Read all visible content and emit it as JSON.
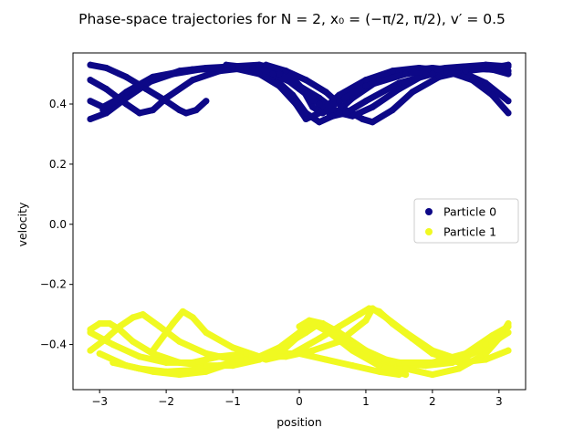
{
  "chart_data": {
    "type": "scatter",
    "title": "Phase-space trajectories for N = 2, x₀ = (−π/2, π/2), v′ = 0.5",
    "xlabel": "position",
    "ylabel": "velocity",
    "xlim": [
      -3.4,
      3.4
    ],
    "ylim": [
      -0.55,
      0.57
    ],
    "xticks": [
      -3,
      -2,
      -1,
      0,
      1,
      2,
      3
    ],
    "xtick_labels": [
      "−3",
      "−2",
      "−1",
      "0",
      "1",
      "2",
      "3"
    ],
    "yticks": [
      -0.4,
      -0.2,
      0.0,
      0.2,
      0.4
    ],
    "ytick_labels": [
      "−0.4",
      "−0.2",
      "0.0",
      "0.2",
      "0.4"
    ],
    "grid": false,
    "legend_position": "center-right",
    "series": [
      {
        "name": "Particle 0",
        "color": "#0d0887",
        "points": [
          [
            -3.14,
            0.53
          ],
          [
            -2.9,
            0.52
          ],
          [
            -2.6,
            0.49
          ],
          [
            -2.3,
            0.45
          ],
          [
            -2.0,
            0.41
          ],
          [
            -1.8,
            0.38
          ],
          [
            -1.7,
            0.37
          ],
          [
            -1.55,
            0.38
          ],
          [
            -1.4,
            0.41
          ],
          [
            -3.14,
            0.48
          ],
          [
            -2.9,
            0.45
          ],
          [
            -2.6,
            0.4
          ],
          [
            -2.4,
            0.37
          ],
          [
            -2.2,
            0.38
          ],
          [
            -2.0,
            0.42
          ],
          [
            -1.6,
            0.48
          ],
          [
            -1.2,
            0.51
          ],
          [
            -0.8,
            0.52
          ],
          [
            -0.4,
            0.49
          ],
          [
            -0.1,
            0.43
          ],
          [
            0.1,
            0.37
          ],
          [
            0.3,
            0.34
          ],
          [
            0.5,
            0.36
          ],
          [
            0.8,
            0.42
          ],
          [
            1.2,
            0.48
          ],
          [
            1.6,
            0.51
          ],
          [
            2.0,
            0.52
          ],
          [
            2.4,
            0.51
          ],
          [
            2.8,
            0.47
          ],
          [
            3.14,
            0.41
          ],
          [
            -3.14,
            0.41
          ],
          [
            -2.95,
            0.39
          ],
          [
            -2.7,
            0.42
          ],
          [
            -2.3,
            0.47
          ],
          [
            -1.9,
            0.5
          ],
          [
            -1.5,
            0.515
          ],
          [
            -1.0,
            0.52
          ],
          [
            -0.6,
            0.5
          ],
          [
            -0.3,
            0.46
          ],
          [
            -0.05,
            0.4
          ],
          [
            0.1,
            0.35
          ],
          [
            0.3,
            0.37
          ],
          [
            0.6,
            0.43
          ],
          [
            1.0,
            0.48
          ],
          [
            1.4,
            0.51
          ],
          [
            1.8,
            0.52
          ],
          [
            2.2,
            0.51
          ],
          [
            2.6,
            0.48
          ],
          [
            2.9,
            0.43
          ],
          [
            3.14,
            0.37
          ],
          [
            -3.14,
            0.35
          ],
          [
            -2.9,
            0.37
          ],
          [
            -2.6,
            0.42
          ],
          [
            -2.2,
            0.48
          ],
          [
            -1.8,
            0.51
          ],
          [
            -1.4,
            0.52
          ],
          [
            -1.0,
            0.525
          ],
          [
            -0.6,
            0.53
          ],
          [
            -0.2,
            0.51
          ],
          [
            0.1,
            0.48
          ],
          [
            0.4,
            0.44
          ],
          [
            0.7,
            0.38
          ],
          [
            0.95,
            0.35
          ],
          [
            1.1,
            0.34
          ],
          [
            1.4,
            0.38
          ],
          [
            1.7,
            0.44
          ],
          [
            2.1,
            0.49
          ],
          [
            2.5,
            0.51
          ],
          [
            2.9,
            0.52
          ],
          [
            3.14,
            0.53
          ],
          [
            -2.95,
            0.38
          ],
          [
            -2.6,
            0.44
          ],
          [
            -2.2,
            0.49
          ],
          [
            -1.6,
            0.515
          ],
          [
            -1.0,
            0.52
          ],
          [
            -0.4,
            0.5
          ],
          [
            0.0,
            0.46
          ],
          [
            0.3,
            0.42
          ],
          [
            0.6,
            0.37
          ],
          [
            0.8,
            0.36
          ],
          [
            1.1,
            0.39
          ],
          [
            1.5,
            0.45
          ],
          [
            1.9,
            0.5
          ],
          [
            2.4,
            0.52
          ],
          [
            2.9,
            0.515
          ],
          [
            3.14,
            0.5
          ],
          [
            -1.1,
            0.53
          ],
          [
            -0.7,
            0.52
          ],
          [
            -0.3,
            0.5
          ],
          [
            0.0,
            0.45
          ],
          [
            0.3,
            0.4
          ],
          [
            0.5,
            0.36
          ],
          [
            0.7,
            0.37
          ],
          [
            1.0,
            0.41
          ],
          [
            1.5,
            0.47
          ],
          [
            2.0,
            0.5
          ],
          [
            2.6,
            0.52
          ],
          [
            3.14,
            0.51
          ],
          [
            -0.5,
            0.53
          ],
          [
            -0.2,
            0.51
          ],
          [
            0.05,
            0.45
          ],
          [
            0.2,
            0.39
          ],
          [
            0.35,
            0.37
          ],
          [
            0.6,
            0.41
          ],
          [
            1.0,
            0.46
          ],
          [
            1.6,
            0.5
          ],
          [
            2.2,
            0.52
          ],
          [
            2.8,
            0.53
          ],
          [
            3.14,
            0.525
          ]
        ]
      },
      {
        "name": "Particle 1",
        "color": "#f0f921",
        "points": [
          [
            -3.14,
            -0.35
          ],
          [
            -3.0,
            -0.33
          ],
          [
            -2.85,
            -0.33
          ],
          [
            -2.7,
            -0.35
          ],
          [
            -2.5,
            -0.39
          ],
          [
            -2.2,
            -0.43
          ],
          [
            -1.8,
            -0.46
          ],
          [
            -1.4,
            -0.47
          ],
          [
            -1.0,
            -0.47
          ],
          [
            -0.6,
            -0.45
          ],
          [
            -0.2,
            -0.4
          ],
          [
            0.1,
            -0.36
          ],
          [
            0.3,
            -0.33
          ],
          [
            0.5,
            -0.35
          ],
          [
            0.8,
            -0.4
          ],
          [
            1.2,
            -0.45
          ],
          [
            1.6,
            -0.48
          ],
          [
            2.0,
            -0.5
          ],
          [
            2.4,
            -0.48
          ],
          [
            2.8,
            -0.43
          ],
          [
            3.0,
            -0.38
          ],
          [
            3.14,
            -0.33
          ],
          [
            -3.14,
            -0.42
          ],
          [
            -2.9,
            -0.38
          ],
          [
            -2.7,
            -0.34
          ],
          [
            -2.5,
            -0.31
          ],
          [
            -2.35,
            -0.3
          ],
          [
            -2.1,
            -0.34
          ],
          [
            -1.8,
            -0.39
          ],
          [
            -1.4,
            -0.43
          ],
          [
            -1.0,
            -0.45
          ],
          [
            -0.6,
            -0.44
          ],
          [
            -0.3,
            -0.41
          ],
          [
            0.0,
            -0.36
          ],
          [
            0.2,
            -0.33
          ],
          [
            0.45,
            -0.36
          ],
          [
            0.8,
            -0.42
          ],
          [
            1.2,
            -0.47
          ],
          [
            1.6,
            -0.5
          ],
          [
            -3.14,
            -0.36
          ],
          [
            -2.8,
            -0.4
          ],
          [
            -2.4,
            -0.44
          ],
          [
            -2.0,
            -0.46
          ],
          [
            -1.6,
            -0.46
          ],
          [
            -1.2,
            -0.44
          ],
          [
            -0.8,
            -0.43
          ],
          [
            -0.5,
            -0.45
          ],
          [
            -0.1,
            -0.43
          ],
          [
            0.3,
            -0.38
          ],
          [
            0.6,
            -0.34
          ],
          [
            0.9,
            -0.3
          ],
          [
            1.05,
            -0.28
          ],
          [
            1.2,
            -0.29
          ],
          [
            1.4,
            -0.33
          ],
          [
            1.7,
            -0.38
          ],
          [
            2.0,
            -0.43
          ],
          [
            2.4,
            -0.46
          ],
          [
            2.8,
            -0.45
          ],
          [
            3.14,
            -0.42
          ],
          [
            -3.0,
            -0.43
          ],
          [
            -2.6,
            -0.47
          ],
          [
            -2.2,
            -0.49
          ],
          [
            -1.8,
            -0.5
          ],
          [
            -1.4,
            -0.49
          ],
          [
            -1.0,
            -0.46
          ],
          [
            -0.6,
            -0.44
          ],
          [
            -0.2,
            -0.41
          ],
          [
            0.1,
            -0.35
          ],
          [
            0.35,
            -0.33
          ],
          [
            0.6,
            -0.36
          ],
          [
            1.0,
            -0.42
          ],
          [
            1.4,
            -0.46
          ],
          [
            1.9,
            -0.47
          ],
          [
            2.3,
            -0.46
          ],
          [
            2.7,
            -0.42
          ],
          [
            3.0,
            -0.38
          ],
          [
            3.14,
            -0.36
          ],
          [
            -2.8,
            -0.46
          ],
          [
            -2.4,
            -0.48
          ],
          [
            -2.0,
            -0.49
          ],
          [
            -1.6,
            -0.485
          ],
          [
            -1.2,
            -0.47
          ],
          [
            -0.8,
            -0.45
          ],
          [
            -0.4,
            -0.43
          ],
          [
            0.0,
            -0.43
          ],
          [
            0.4,
            -0.45
          ],
          [
            0.8,
            -0.47
          ],
          [
            1.2,
            -0.49
          ],
          [
            1.5,
            -0.5
          ],
          [
            -2.2,
            -0.42
          ],
          [
            -1.9,
            -0.33
          ],
          [
            -1.75,
            -0.29
          ],
          [
            -1.6,
            -0.31
          ],
          [
            -1.4,
            -0.36
          ],
          [
            -1.0,
            -0.41
          ],
          [
            -0.6,
            -0.44
          ],
          [
            -0.2,
            -0.44
          ],
          [
            0.2,
            -0.42
          ],
          [
            0.6,
            -0.39
          ],
          [
            1.0,
            -0.32
          ],
          [
            1.1,
            -0.28
          ],
          [
            1.3,
            -0.31
          ],
          [
            1.6,
            -0.36
          ],
          [
            2.0,
            -0.42
          ],
          [
            2.4,
            -0.45
          ],
          [
            2.8,
            -0.4
          ],
          [
            3.14,
            -0.34
          ],
          [
            0.0,
            -0.34
          ],
          [
            0.15,
            -0.32
          ],
          [
            0.35,
            -0.33
          ],
          [
            0.7,
            -0.39
          ],
          [
            1.1,
            -0.44
          ],
          [
            1.5,
            -0.46
          ],
          [
            2.0,
            -0.46
          ],
          [
            2.5,
            -0.43
          ],
          [
            2.9,
            -0.37
          ],
          [
            3.14,
            -0.34
          ]
        ]
      }
    ]
  }
}
